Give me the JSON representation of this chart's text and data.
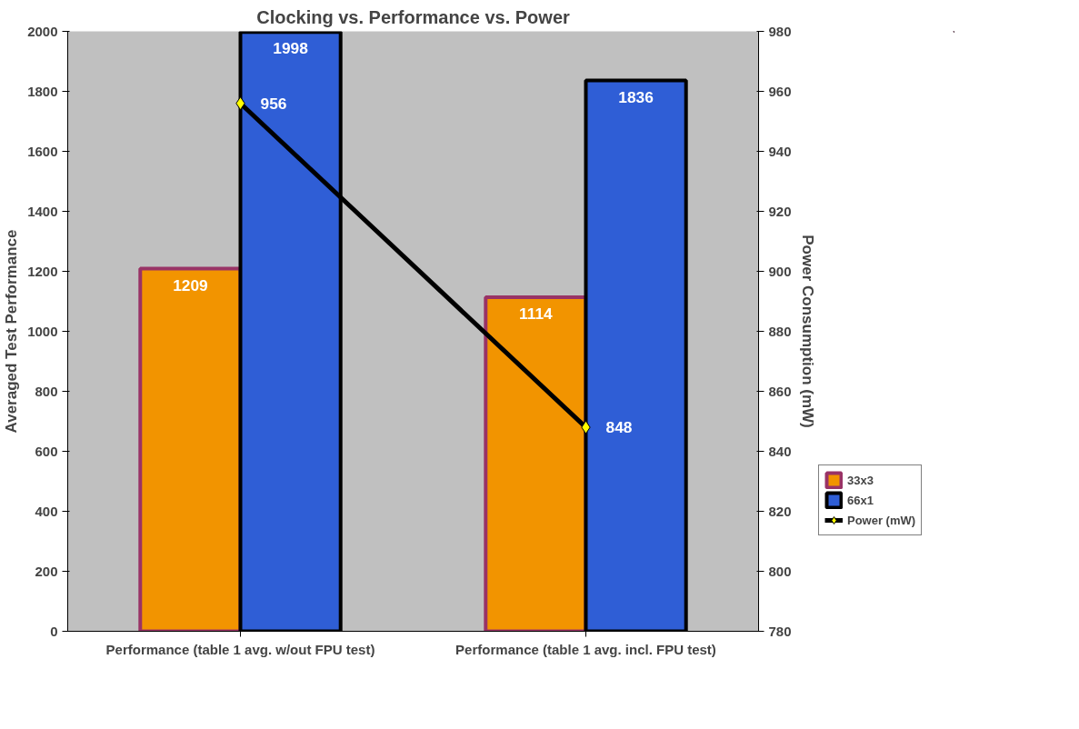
{
  "chart_data": {
    "type": "bar",
    "title": "Clocking vs. Performance vs. Power",
    "ylabel": "Averaged Test Performance",
    "y2label": "Power Consumption (mW)",
    "categories": [
      "Performance (table 1 avg. w/out FPU test)",
      "Performance (table 1 avg. incl. FPU test)"
    ],
    "series": [
      {
        "name": "33x3",
        "color": "#f29400",
        "values": [
          1209,
          1114
        ]
      },
      {
        "name": "66x1",
        "color": "#2f5ed6",
        "values": [
          1998,
          1836
        ]
      },
      {
        "name": "Power (mW)",
        "type": "line",
        "axis": "y2",
        "color": "#000000",
        "values": [
          956,
          848
        ]
      }
    ],
    "ylim": [
      0,
      2000
    ],
    "yticks": [
      0,
      200,
      400,
      600,
      800,
      1000,
      1200,
      1400,
      1600,
      1800,
      2000
    ],
    "y2lim": [
      780,
      980
    ],
    "y2ticks": [
      780,
      800,
      820,
      840,
      860,
      880,
      900,
      920,
      940,
      960,
      980
    ],
    "data_labels": true,
    "legend": "right",
    "grid": false,
    "marker": "diamond",
    "line_style": "solid"
  }
}
